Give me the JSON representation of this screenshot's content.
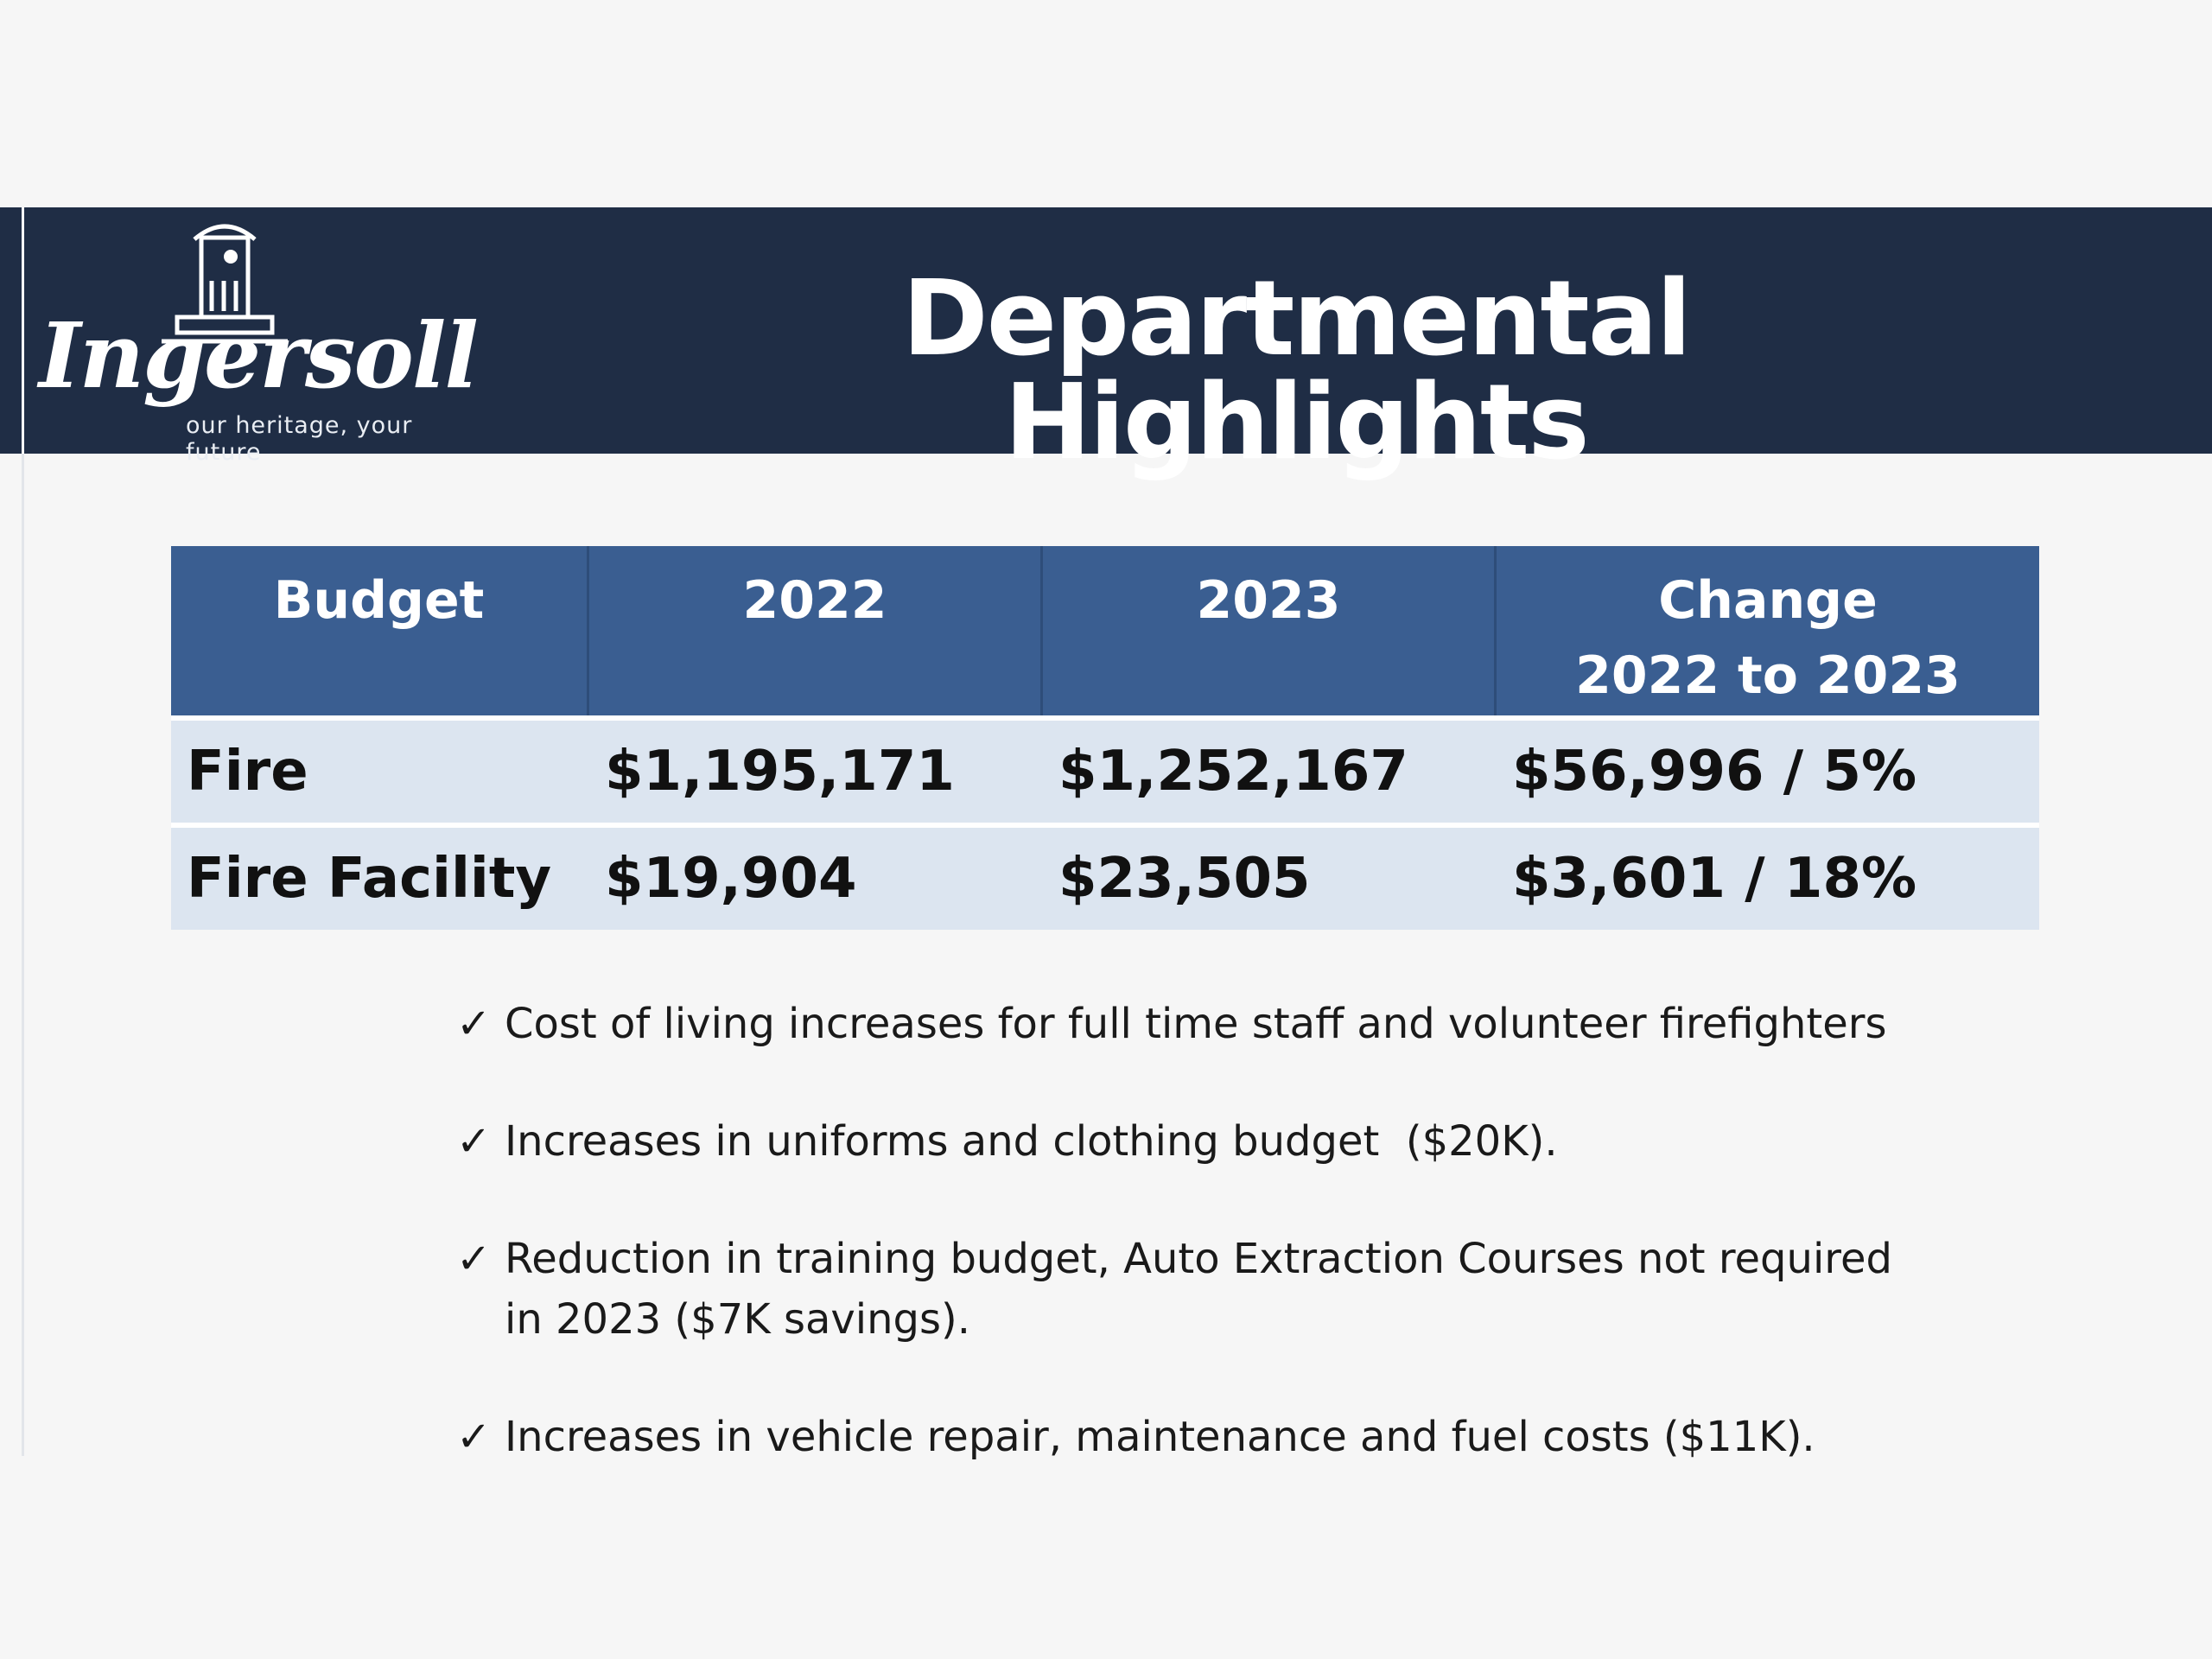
{
  "logo": {
    "wordmark": "Ingersoll",
    "tagline": "our heritage, your future"
  },
  "header": {
    "title": "Departmental Highlights"
  },
  "table": {
    "headers": [
      "Budget",
      "2022",
      "2023",
      "Change"
    ],
    "header_change_sub": "2022 to 2023",
    "rows": [
      {
        "label": "Fire",
        "y2022": "$1,195,171",
        "y2023": "$1,252,167",
        "change": "$56,996 / 5%"
      },
      {
        "label": "Fire Facility",
        "y2022": "$19,904",
        "y2023": "$23,505",
        "change": "$3,601 / 18%"
      }
    ]
  },
  "bullets": [
    "Cost of living increases for full time staff and volunteer firefighters",
    "Increases in uniforms and clothing budget  ($20K).",
    "Reduction in training budget, Auto Extraction Courses not required in 2023 ($7K savings).",
    "Increases in vehicle repair, maintenance and fuel costs ($11K)."
  ],
  "check_glyph": "✓",
  "colors": {
    "header_band": "#1f2d45",
    "table_header": "#3a5e91",
    "table_row": "#dce5f0"
  }
}
